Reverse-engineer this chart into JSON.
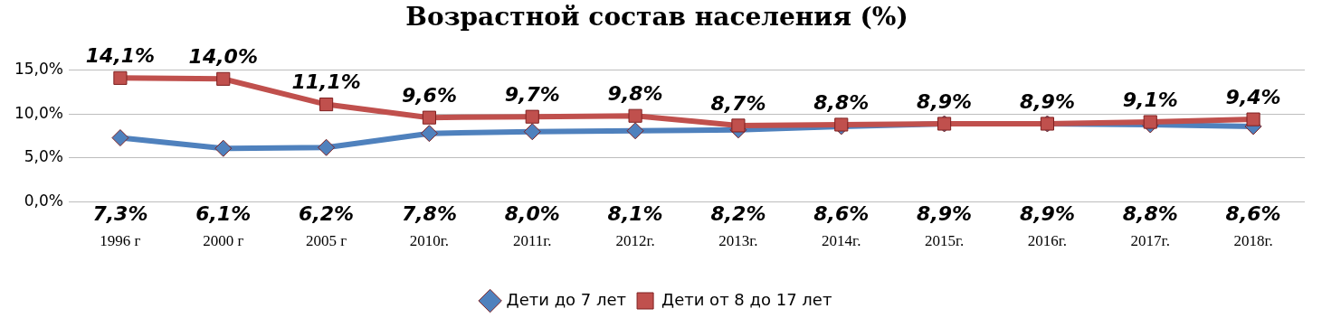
{
  "chart_data": {
    "type": "line",
    "title": "Возрастной состав населения (%)",
    "categories": [
      "1996 г",
      "2000 г",
      "2005 г",
      "2010г.",
      "2011г.",
      "2012г.",
      "2013г.",
      "2014г.",
      "2015г.",
      "2016г.",
      "2017г.",
      "2018г."
    ],
    "series": [
      {
        "name": "Дети до 7 лет",
        "color": "#4f81bd",
        "marker": "diamond",
        "values": [
          7.3,
          6.1,
          6.2,
          7.8,
          8.0,
          8.1,
          8.2,
          8.6,
          8.9,
          8.9,
          8.8,
          8.6
        ],
        "value_labels": [
          "7,3%",
          "6,1%",
          "6,2%",
          "7,8%",
          "8,0%",
          "8,1%",
          "8,2%",
          "8,6%",
          "8,9%",
          "8,9%",
          "8,8%",
          "8,6%"
        ]
      },
      {
        "name": "Дети от 8 до 17 лет",
        "color": "#c0504d",
        "marker": "square",
        "values": [
          14.1,
          14.0,
          11.1,
          9.6,
          9.7,
          9.8,
          8.7,
          8.8,
          8.9,
          8.9,
          9.1,
          9.4
        ],
        "value_labels": [
          "14,1%",
          "14,0%",
          "11,1%",
          "9,6%",
          "9,7%",
          "9,8%",
          "8,7%",
          "8,8%",
          "8,9%",
          "8,9%",
          "9,1%",
          "9,4%"
        ]
      }
    ],
    "ylim": [
      0,
      15
    ],
    "yticks": [
      {
        "value": 0,
        "label": "0,0%"
      },
      {
        "value": 5,
        "label": "5,0%"
      },
      {
        "value": 10,
        "label": "10,0%"
      },
      {
        "value": 15,
        "label": "15,0%"
      }
    ],
    "grid": "y",
    "legend": "bottom"
  }
}
